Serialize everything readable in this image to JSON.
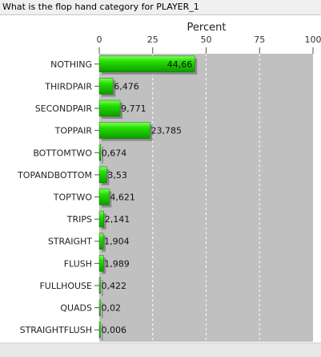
{
  "window": {
    "title": "What is the flop hand category for PLAYER_1"
  },
  "chart_data": {
    "type": "bar",
    "orientation": "horizontal",
    "title": "",
    "xlabel": "Percent",
    "ylabel": "",
    "xlim": [
      0,
      100
    ],
    "xticks": [
      "0",
      "25",
      "50",
      "75",
      "100"
    ],
    "grid": true,
    "legend": "none",
    "bar_color": "#22cc00",
    "plot_bg": "#c0c0c0",
    "categories": [
      "NOTHING",
      "THIRDPAIR",
      "SECONDPAIR",
      "TOPPAIR",
      "BOTTOMTWO",
      "TOPANDBOTTOM",
      "TOPTWO",
      "TRIPS",
      "STRAIGHT",
      "FLUSH",
      "FULLHOUSE",
      "QUADS",
      "STRAIGHTFLUSH"
    ],
    "values": [
      44.66,
      6.476,
      9.771,
      23.785,
      0.674,
      3.53,
      4.621,
      2.141,
      1.904,
      1.989,
      0.422,
      0.02,
      0.006
    ],
    "value_labels": [
      "44,66",
      "6,476",
      "9,771",
      "23,785",
      "0,674",
      "3,53",
      "4,621",
      "2,141",
      "1,904",
      "1,989",
      "0,422",
      "0,02",
      "0,006"
    ]
  }
}
